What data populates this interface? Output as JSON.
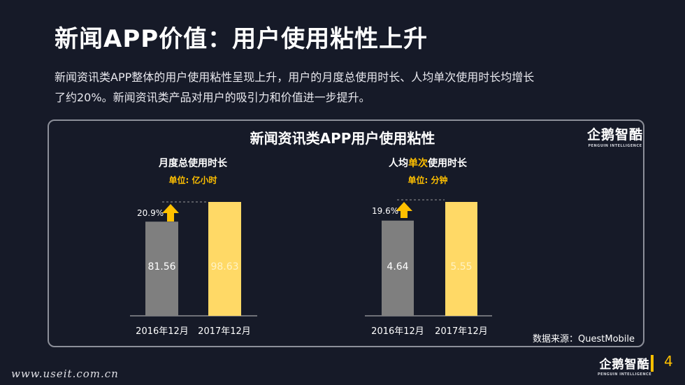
{
  "header": {
    "title": "新闻APP价值：用户使用粘性上升",
    "desc_line1": "新闻资讯类APP整体的用户使用粘性呈现上升，用户的月度总使用时长、人均单次使用时长均增长",
    "desc_line2": "了约20%。新闻资讯类产品对用户的吸引力和价值进一步提升。"
  },
  "panel": {
    "title": "新闻资讯类APP用户使用粘性",
    "source": "数据来源：QuestMobile"
  },
  "logo": {
    "cn": "企鹅智酷",
    "en": "PENGUIN INTELLIGENCE"
  },
  "footer": {
    "page": "4",
    "watermark": "www.useit.com.cn"
  },
  "colors": {
    "bar_2016": "#7f7f7f",
    "bar_2017": "#ffd966",
    "accent": "#ffc000",
    "background": "#161a28"
  },
  "chart_data": [
    {
      "type": "bar",
      "title": "月度总使用时长",
      "subtitle": "单位: 亿小时",
      "categories": [
        "2016年12月",
        "2017年12月"
      ],
      "values": [
        81.56,
        98.63
      ],
      "value_labels": [
        "81.56",
        "98.63"
      ],
      "growth_label": "20.9%",
      "ylim": [
        0,
        98.63
      ]
    },
    {
      "type": "bar",
      "title": "人均单次使用时长",
      "title_parts": [
        "人均",
        "单次",
        "使用时长"
      ],
      "subtitle": "单位: 分钟",
      "categories": [
        "2016年12月",
        "2017年12月"
      ],
      "values": [
        4.64,
        5.55
      ],
      "value_labels": [
        "4.64",
        "5.55"
      ],
      "growth_label": "19.6%",
      "ylim": [
        0,
        5.55
      ]
    }
  ]
}
